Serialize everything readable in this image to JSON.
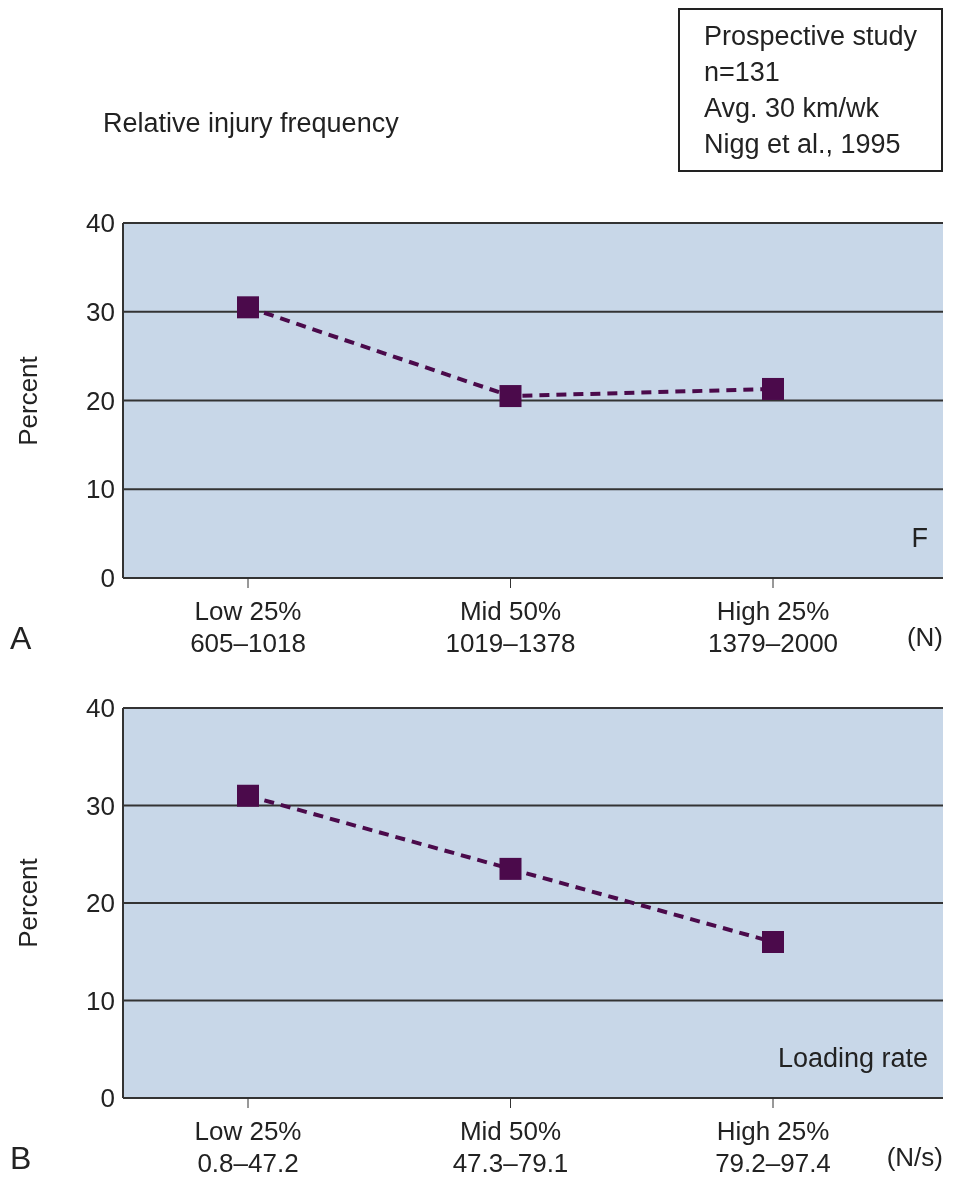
{
  "chart_data": [
    {
      "type": "line",
      "title": "Relative injury frequency",
      "ylabel": "Percent",
      "xlabel": "(N)",
      "categories": [
        "Low 25%\n605–1018",
        "Mid 50%\n1019–1378",
        "High 25%\n1379–2000"
      ],
      "series": [
        {
          "color": "#4b0a4b",
          "values": [
            30.5,
            20.5,
            21.3
          ]
        }
      ],
      "ylim": [
        0,
        40
      ],
      "yticks": [
        0,
        10,
        20,
        30,
        40
      ],
      "grid": "y",
      "marker": "square",
      "line_style": "dashed",
      "legend": false,
      "annotations": [
        "Prospective study\nn=131\nAvg. 30 km/wk\nNigg et al., 1995",
        "F",
        "A"
      ]
    },
    {
      "type": "line",
      "ylabel": "Percent",
      "xlabel": "(N/s)",
      "categories": [
        "Low 25%\n0.8–47.2",
        "Mid 50%\n47.3–79.1",
        "High 25%\n79.2–97.4"
      ],
      "series": [
        {
          "color": "#4b0a4b",
          "values": [
            31,
            23.5,
            16
          ]
        }
      ],
      "ylim": [
        0,
        40
      ],
      "yticks": [
        0,
        10,
        20,
        30,
        40
      ],
      "grid": "y",
      "marker": "square",
      "line_style": "dashed",
      "legend": false,
      "annotations": [
        "Loading rate",
        "B"
      ]
    }
  ]
}
